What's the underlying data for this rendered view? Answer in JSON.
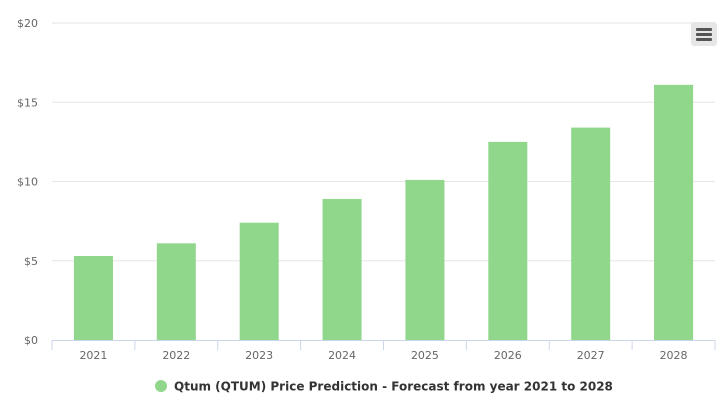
{
  "chart_data": {
    "type": "bar",
    "categories": [
      "2021",
      "2022",
      "2023",
      "2024",
      "2025",
      "2026",
      "2027",
      "2028"
    ],
    "values": [
      5.3,
      6.1,
      7.4,
      8.9,
      10.1,
      12.5,
      13.4,
      16.1
    ],
    "y_ticks": [
      "$0",
      "$5",
      "$10",
      "$15",
      "$20"
    ],
    "y_tick_values": [
      0,
      5,
      10,
      15,
      20
    ],
    "ylim": [
      0,
      20
    ],
    "grid": true,
    "legend": {
      "position": "bottom-center",
      "entries": [
        {
          "label": "Qtum (QTUM) Price Prediction - Forecast from year 2021 to 2028",
          "color": "#90d68b"
        }
      ]
    },
    "bar_color": "#90d68b"
  },
  "toolbar": {
    "menu_icon": "hamburger-menu-icon"
  }
}
